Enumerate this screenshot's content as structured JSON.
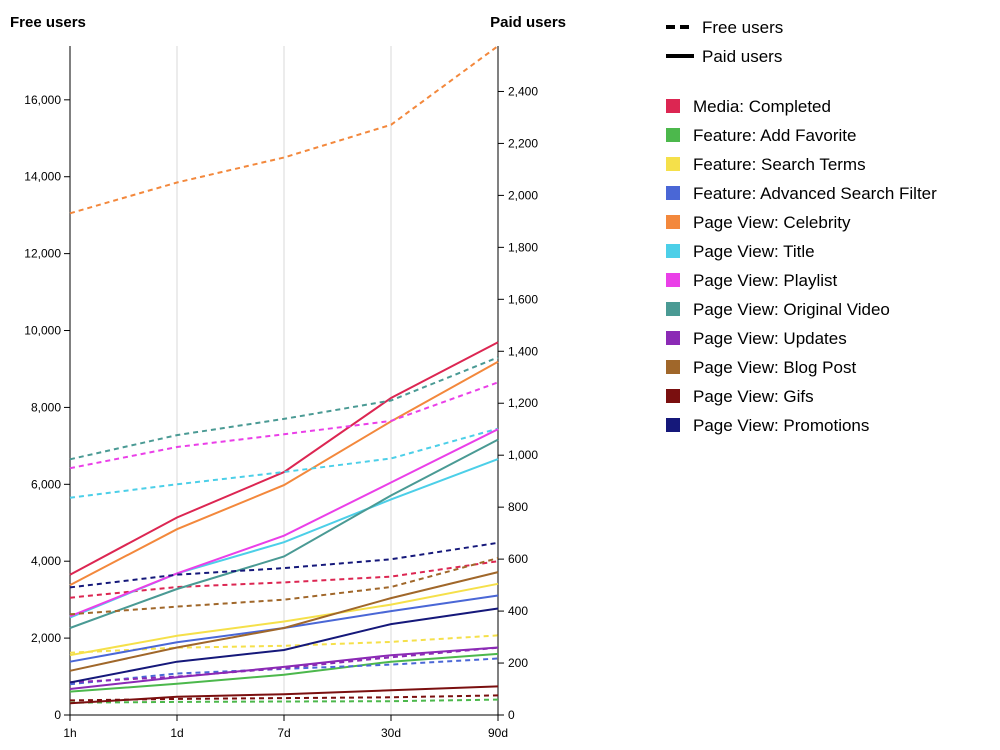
{
  "chart_data": {
    "type": "line",
    "categories": [
      "1h",
      "1d",
      "7d",
      "30d",
      "90d"
    ],
    "y_left": {
      "label": "Free users",
      "range": [
        0,
        17400
      ],
      "ticks": [
        0,
        2000,
        4000,
        6000,
        8000,
        10000,
        12000,
        14000,
        16000
      ]
    },
    "y_right": {
      "label": "Paid users",
      "range": [
        0,
        2575
      ],
      "ticks": [
        0,
        200,
        400,
        600,
        800,
        1000,
        1200,
        1400,
        1600,
        1800,
        2000,
        2200,
        2400
      ]
    },
    "grid": {
      "vertical": true,
      "horizontal": false
    },
    "legend": {
      "placement": "right",
      "styles": [
        {
          "label": "Free users",
          "dash": "dashed"
        },
        {
          "label": "Paid users",
          "dash": "solid"
        }
      ]
    },
    "series": [
      {
        "name": "Media: Completed",
        "color": "#dc2652",
        "free": [
          3050,
          3330,
          3450,
          3600,
          4000
        ],
        "paid": [
          540,
          760,
          935,
          1220,
          1435
        ]
      },
      {
        "name": "Feature: Add Favorite",
        "color": "#4cb84c",
        "free": [
          320,
          340,
          350,
          360,
          400
        ],
        "paid": [
          90,
          120,
          155,
          205,
          235
        ]
      },
      {
        "name": "Feature: Search Terms",
        "color": "#f5e04a",
        "free": [
          1620,
          1750,
          1800,
          1900,
          2070
        ],
        "paid": [
          230,
          305,
          360,
          425,
          505
        ]
      },
      {
        "name": "Feature: Advanced Search Filter",
        "color": "#4a67d6",
        "free": [
          800,
          1080,
          1200,
          1310,
          1470
        ],
        "paid": [
          205,
          280,
          335,
          400,
          460
        ]
      },
      {
        "name": "Page View: Celebrity",
        "color": "#f3883c",
        "free": [
          13050,
          13850,
          14500,
          15350,
          17400
        ],
        "paid": [
          500,
          715,
          885,
          1130,
          1360
        ]
      },
      {
        "name": "Page View: Title",
        "color": "#4ccfe8",
        "free": [
          5650,
          6000,
          6320,
          6670,
          7450
        ],
        "paid": [
          375,
          545,
          665,
          830,
          985
        ]
      },
      {
        "name": "Page View: Playlist",
        "color": "#ea3fe8",
        "free": [
          6420,
          6970,
          7300,
          7650,
          8650
        ],
        "paid": [
          380,
          545,
          690,
          895,
          1100
        ]
      },
      {
        "name": "Page View: Original Video",
        "color": "#4a9a94",
        "free": [
          6650,
          7280,
          7700,
          8180,
          9300
        ],
        "paid": [
          335,
          485,
          610,
          845,
          1060
        ]
      },
      {
        "name": "Page View: Updates",
        "color": "#8b2ab5",
        "free": [
          850,
          1000,
          1220,
          1500,
          1750
        ],
        "paid": [
          100,
          145,
          185,
          230,
          260
        ]
      },
      {
        "name": "Page View: Blog Post",
        "color": "#a0672a",
        "free": [
          2620,
          2820,
          3000,
          3330,
          4080
        ],
        "paid": [
          170,
          260,
          335,
          450,
          550
        ]
      },
      {
        "name": "Page View: Gifs",
        "color": "#7a0f0f",
        "free": [
          380,
          420,
          440,
          460,
          510
        ],
        "paid": [
          45,
          70,
          80,
          95,
          110
        ]
      },
      {
        "name": "Page View: Promotions",
        "color": "#15187a",
        "free": [
          3320,
          3650,
          3820,
          4050,
          4480
        ],
        "paid": [
          125,
          205,
          250,
          350,
          410
        ]
      }
    ]
  }
}
